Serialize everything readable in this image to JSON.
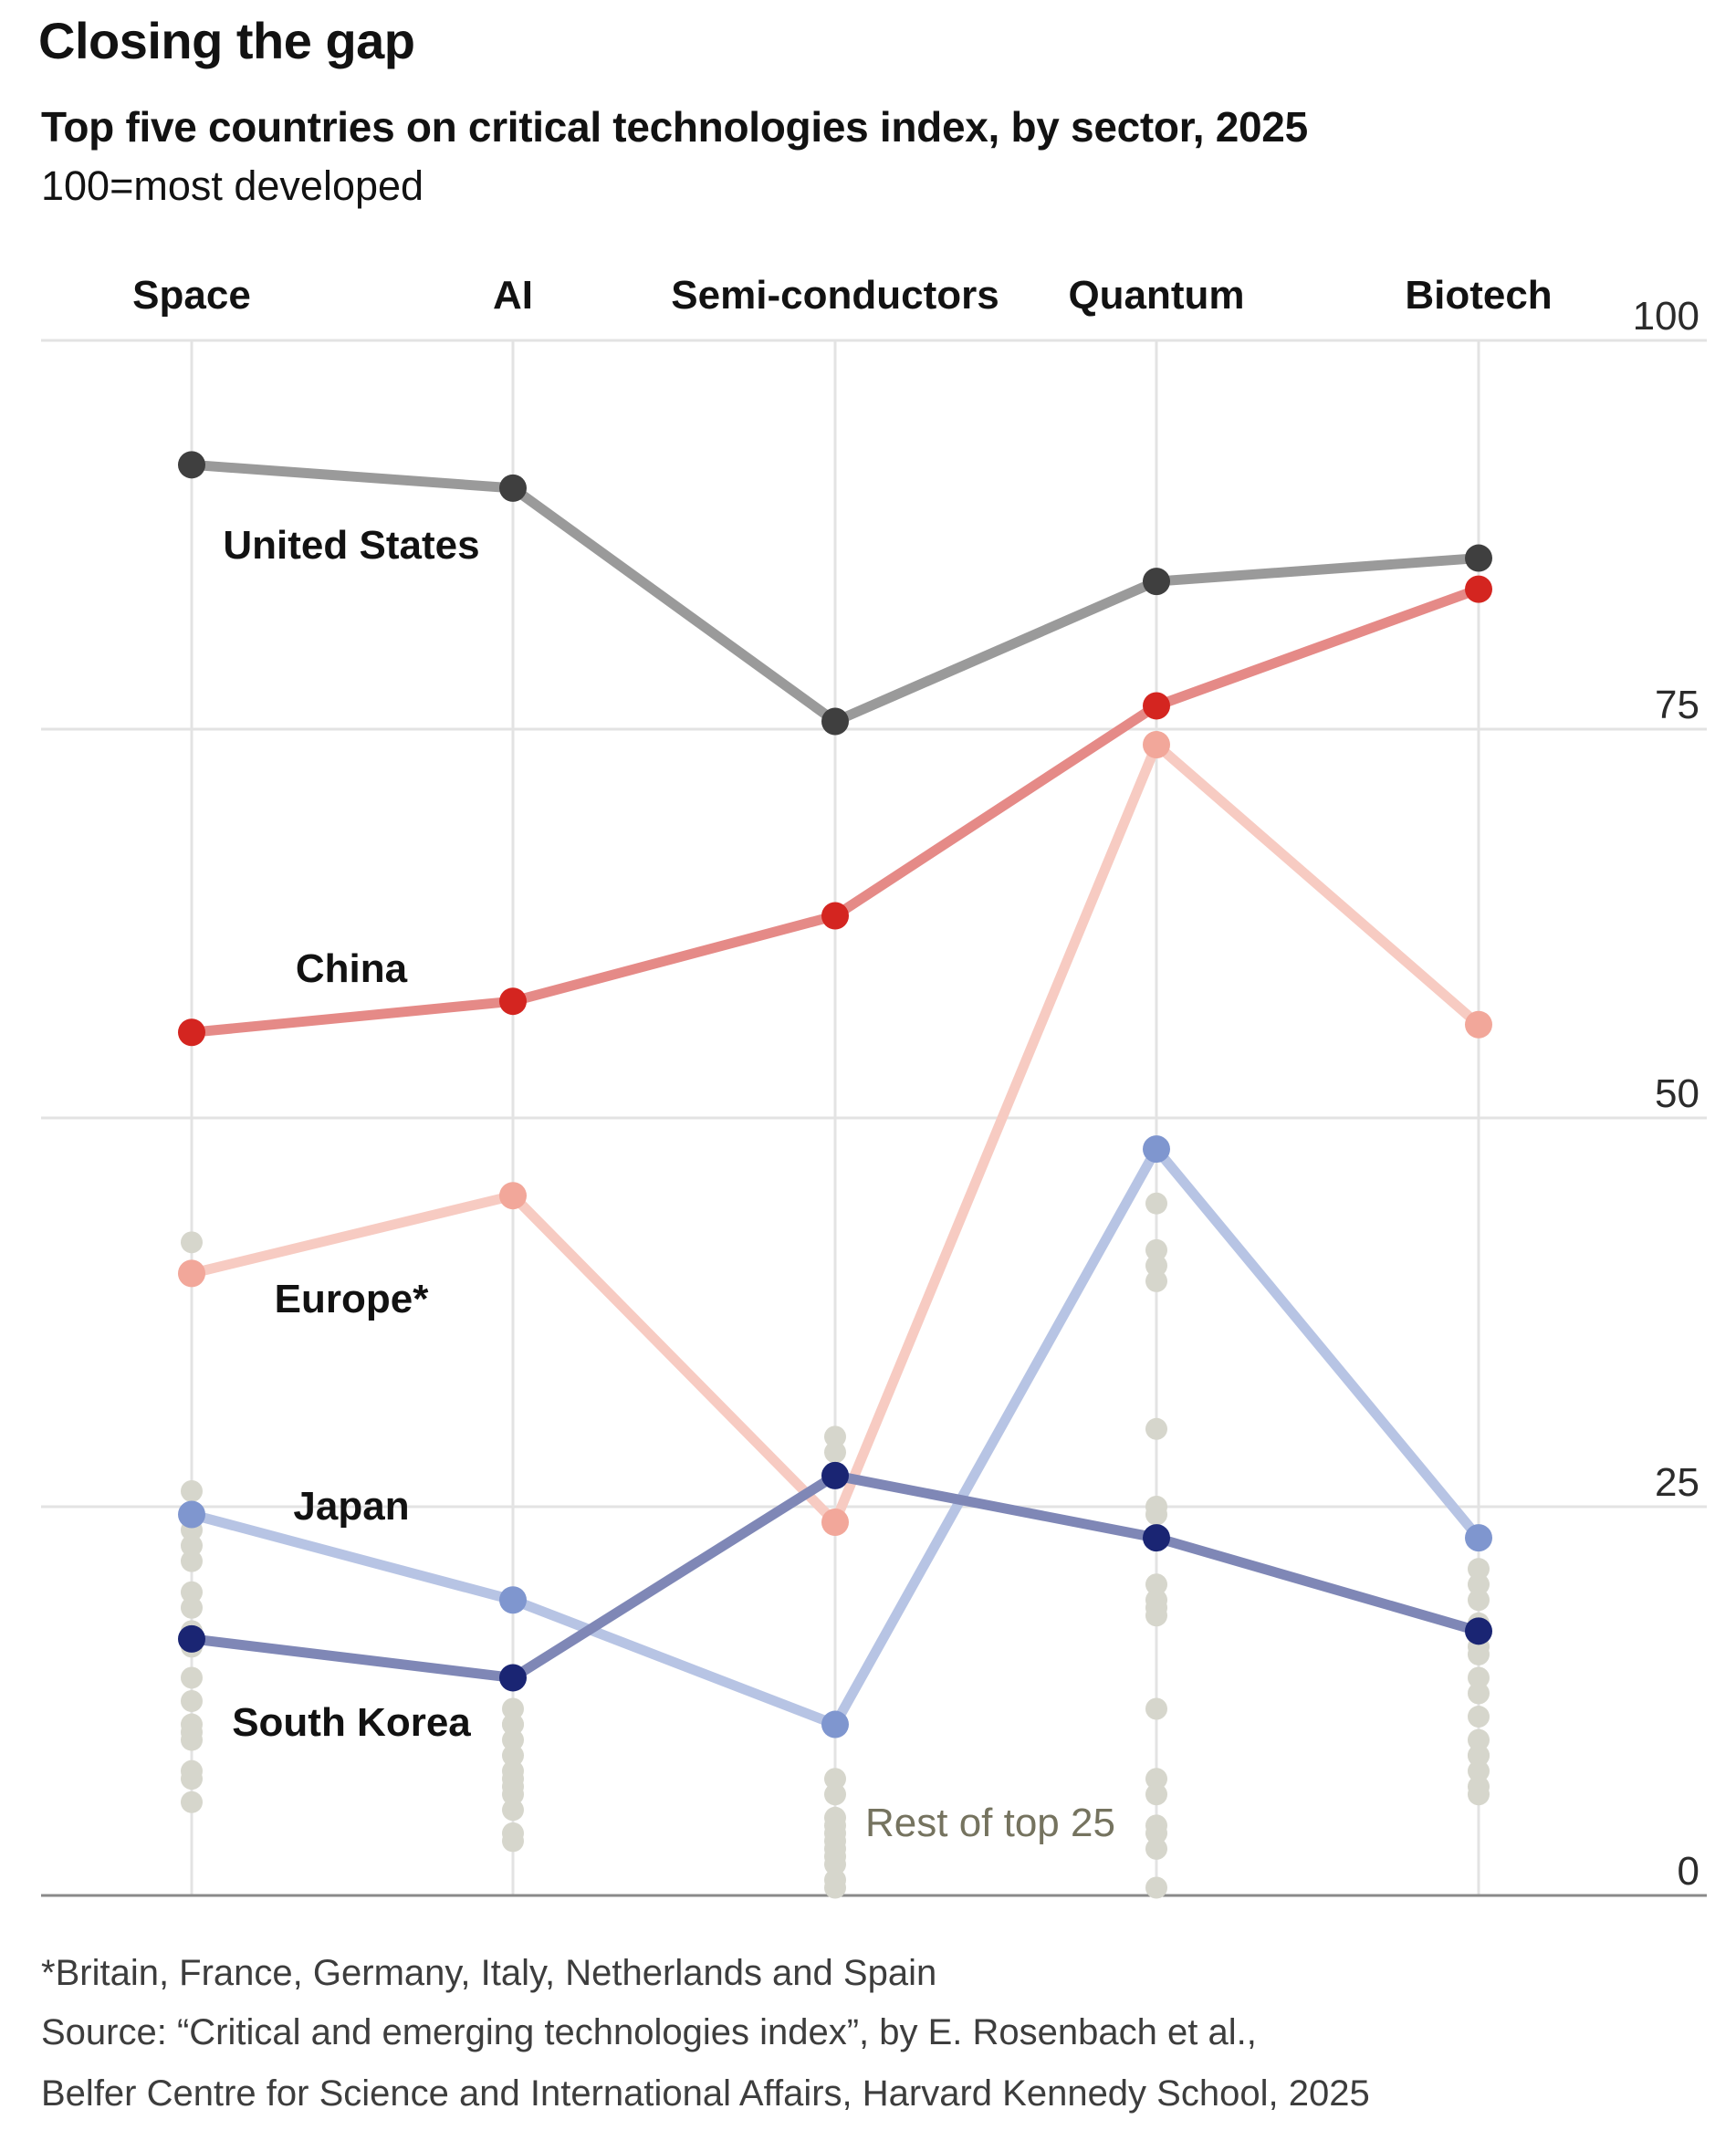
{
  "header": {
    "title": "Closing the gap",
    "subtitle": "Top five countries on critical technologies index, by sector, 2025",
    "unit": "100=most developed"
  },
  "chart_data": {
    "type": "line",
    "categories": [
      "Space",
      "AI",
      "Semi-conductors",
      "Quantum",
      "Biotech"
    ],
    "ylim": [
      0,
      100
    ],
    "yticks": [
      0,
      25,
      50,
      75,
      100
    ],
    "grid": true,
    "series": [
      {
        "name": "United States",
        "color": "#9a9a9a",
        "dot_color": "#3f3f3f",
        "values": [
          92,
          90.5,
          75.5,
          84.5,
          86
        ]
      },
      {
        "name": "China",
        "color": "#e58a87",
        "dot_color": "#d42520",
        "values": [
          55.5,
          57.5,
          63,
          76.5,
          84
        ]
      },
      {
        "name": "Europe*",
        "color": "#f7cbc2",
        "dot_color": "#f2a79a",
        "values": [
          40,
          45,
          24,
          74,
          56
        ]
      },
      {
        "name": "Japan",
        "color": "#b7c4e4",
        "dot_color": "#7f96cf",
        "values": [
          24.5,
          19,
          11,
          48,
          23
        ]
      },
      {
        "name": "South Korea",
        "color": "#7f87b6",
        "dot_color": "#1a2573",
        "values": [
          16.5,
          14,
          27,
          23,
          17
        ]
      }
    ],
    "rest_label": "Rest of top 25",
    "rest_color": "#d6d6cc",
    "rest_of_top_25": [
      [
        42,
        26,
        24.5,
        23.5,
        22.5,
        21.5,
        19.5,
        18.5,
        17,
        16,
        14,
        12.5,
        11,
        10.5,
        10,
        8,
        7.5,
        6
      ],
      [
        19,
        12,
        11,
        11,
        10,
        9,
        8,
        7.5,
        7,
        6.5,
        5.5,
        4,
        3.5
      ],
      [
        29.5,
        28.5,
        7.5,
        6.5,
        5,
        4.5,
        4,
        3.5,
        3,
        2.5,
        2,
        1,
        0.5
      ],
      [
        44.5,
        41.5,
        40.5,
        39.5,
        30,
        25,
        24.5,
        20,
        19,
        18.5,
        18,
        12,
        7.5,
        6.5,
        4.5,
        4,
        3,
        0.5
      ],
      [
        23,
        21,
        20,
        19,
        17.5,
        16,
        15.5,
        14,
        13,
        11.5,
        10,
        9,
        9,
        8,
        7,
        6.5
      ]
    ]
  },
  "footnotes": {
    "note": "*Britain, France, Germany, Italy, Netherlands and Spain",
    "source_line1": "Source: “Critical and emerging technologies index”, by E. Rosenbach et al.,",
    "source_line2": "Belfer Centre for Science and International Affairs, Harvard Kennedy School, 2025"
  }
}
